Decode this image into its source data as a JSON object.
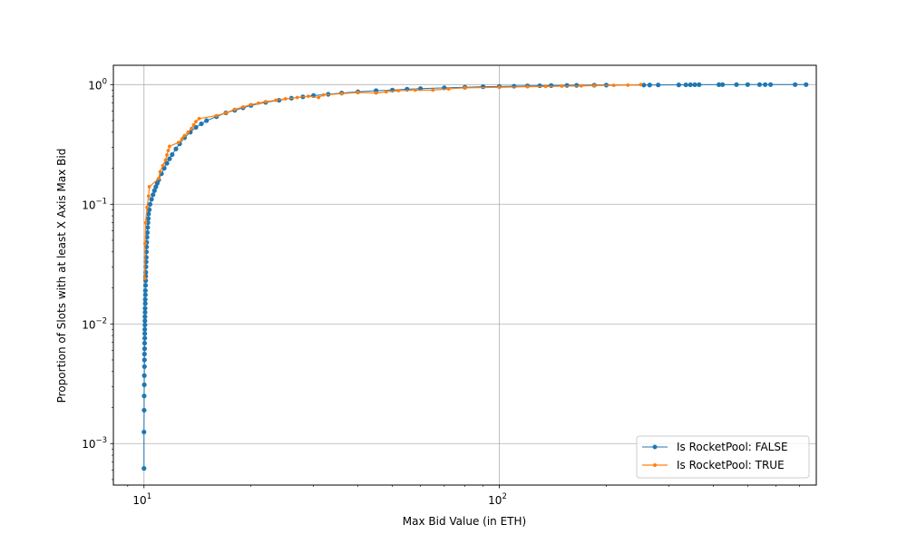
{
  "chart_data": {
    "type": "line",
    "xlabel": "Max Bid Value (in ETH)",
    "ylabel": "Proportion of Slots with at least X Axis Max Bid",
    "xscale": "log",
    "yscale": "log",
    "xlim": [
      8.2,
      780
    ],
    "ylim": [
      0.00045,
      1.45
    ],
    "xticks": [
      {
        "value": 10,
        "base": "10",
        "exp": "1"
      },
      {
        "value": 100,
        "base": "10",
        "exp": "2"
      }
    ],
    "yticks": [
      {
        "value": 0.001,
        "base": "10",
        "exp": "−3"
      },
      {
        "value": 0.01,
        "base": "10",
        "exp": "−2"
      },
      {
        "value": 0.1,
        "base": "10",
        "exp": "−1"
      },
      {
        "value": 1,
        "base": "10",
        "exp": "0"
      }
    ],
    "grid": true,
    "legend_position": "lower-right",
    "series": [
      {
        "name": "Is RocketPool: FALSE",
        "color": "#1f77b4",
        "marker": "circle",
        "points": [
          [
            10.0,
            0.00062
          ],
          [
            10.0,
            0.00125
          ],
          [
            10.01,
            0.0019
          ],
          [
            10.01,
            0.0025
          ],
          [
            10.02,
            0.0031
          ],
          [
            10.02,
            0.0037
          ],
          [
            10.03,
            0.0044
          ],
          [
            10.03,
            0.005
          ],
          [
            10.03,
            0.0056
          ],
          [
            10.04,
            0.0062
          ],
          [
            10.04,
            0.0069
          ],
          [
            10.05,
            0.0076
          ],
          [
            10.05,
            0.0083
          ],
          [
            10.05,
            0.009
          ],
          [
            10.06,
            0.0098
          ],
          [
            10.06,
            0.0106
          ],
          [
            10.06,
            0.0115
          ],
          [
            10.07,
            0.0125
          ],
          [
            10.07,
            0.0135
          ],
          [
            10.08,
            0.0148
          ],
          [
            10.08,
            0.016
          ],
          [
            10.09,
            0.0175
          ],
          [
            10.09,
            0.019
          ],
          [
            10.1,
            0.021
          ],
          [
            10.11,
            0.023
          ],
          [
            10.11,
            0.025
          ],
          [
            10.12,
            0.027
          ],
          [
            10.13,
            0.03
          ],
          [
            10.14,
            0.033
          ],
          [
            10.15,
            0.036
          ],
          [
            10.16,
            0.04
          ],
          [
            10.17,
            0.044
          ],
          [
            10.18,
            0.048
          ],
          [
            10.2,
            0.053
          ],
          [
            10.22,
            0.058
          ],
          [
            10.24,
            0.064
          ],
          [
            10.26,
            0.07
          ],
          [
            10.28,
            0.076
          ],
          [
            10.3,
            0.083
          ],
          [
            10.35,
            0.09
          ],
          [
            10.4,
            0.1
          ],
          [
            10.5,
            0.11
          ],
          [
            10.6,
            0.12
          ],
          [
            10.7,
            0.13
          ],
          [
            10.8,
            0.14
          ],
          [
            10.9,
            0.15
          ],
          [
            11.0,
            0.16
          ],
          [
            11.2,
            0.18
          ],
          [
            11.4,
            0.2
          ],
          [
            11.6,
            0.22
          ],
          [
            11.8,
            0.24
          ],
          [
            12.0,
            0.26
          ],
          [
            12.3,
            0.29
          ],
          [
            12.6,
            0.32
          ],
          [
            13.0,
            0.36
          ],
          [
            13.5,
            0.4
          ],
          [
            14.0,
            0.44
          ],
          [
            14.5,
            0.47
          ],
          [
            15.0,
            0.5
          ],
          [
            16.0,
            0.54
          ],
          [
            17.0,
            0.58
          ],
          [
            18.0,
            0.61
          ],
          [
            19.0,
            0.64
          ],
          [
            20.0,
            0.67
          ],
          [
            22.0,
            0.71
          ],
          [
            24.0,
            0.74
          ],
          [
            26.0,
            0.77
          ],
          [
            28.0,
            0.79
          ],
          [
            30.0,
            0.81
          ],
          [
            33.0,
            0.83
          ],
          [
            36.0,
            0.85
          ],
          [
            40.0,
            0.87
          ],
          [
            45.0,
            0.89
          ],
          [
            50.0,
            0.9
          ],
          [
            55.0,
            0.915
          ],
          [
            60.0,
            0.925
          ],
          [
            70.0,
            0.94
          ],
          [
            80.0,
            0.95
          ],
          [
            90.0,
            0.96
          ],
          [
            100.0,
            0.965
          ],
          [
            110.0,
            0.97
          ],
          [
            120.0,
            0.975
          ],
          [
            130.0,
            0.978
          ],
          [
            140.0,
            0.981
          ],
          [
            155.0,
            0.984
          ],
          [
            165.0,
            0.986
          ],
          [
            185.0,
            0.988
          ],
          [
            200.0,
            0.99
          ],
          [
            255.0,
            0.991
          ],
          [
            265.0,
            0.992
          ],
          [
            280.0,
            0.993
          ],
          [
            320.0,
            0.994
          ],
          [
            335.0,
            0.995
          ],
          [
            345.0,
            0.996
          ],
          [
            355.0,
            0.997
          ],
          [
            365.0,
            0.998
          ],
          [
            415.0,
            0.999
          ],
          [
            425.0,
            0.9993
          ],
          [
            465.0,
            0.9995
          ],
          [
            500.0,
            0.9997
          ],
          [
            540.0,
            0.9998
          ],
          [
            560.0,
            0.9999
          ],
          [
            580.0,
            0.99995
          ],
          [
            680.0,
            0.99998
          ],
          [
            730.0,
            1.0
          ]
        ]
      },
      {
        "name": "Is RocketPool: TRUE",
        "color": "#ff7f0e",
        "marker": "circle",
        "points": [
          [
            10.05,
            0.024
          ],
          [
            10.07,
            0.047
          ],
          [
            10.1,
            0.07
          ],
          [
            10.2,
            0.094
          ],
          [
            10.3,
            0.117
          ],
          [
            10.35,
            0.14
          ],
          [
            11.0,
            0.164
          ],
          [
            11.1,
            0.187
          ],
          [
            11.3,
            0.211
          ],
          [
            11.5,
            0.234
          ],
          [
            11.6,
            0.258
          ],
          [
            11.7,
            0.281
          ],
          [
            11.8,
            0.305
          ],
          [
            12.5,
            0.328
          ],
          [
            12.8,
            0.352
          ],
          [
            13.0,
            0.375
          ],
          [
            13.3,
            0.4
          ],
          [
            13.6,
            0.43
          ],
          [
            13.8,
            0.46
          ],
          [
            14.0,
            0.49
          ],
          [
            14.3,
            0.52
          ],
          [
            16.0,
            0.55
          ],
          [
            17.0,
            0.58
          ],
          [
            18.0,
            0.62
          ],
          [
            19.0,
            0.65
          ],
          [
            20.0,
            0.68
          ],
          [
            21.0,
            0.7
          ],
          [
            22.0,
            0.72
          ],
          [
            23.5,
            0.74
          ],
          [
            25.0,
            0.76
          ],
          [
            27.0,
            0.78
          ],
          [
            29.0,
            0.8
          ],
          [
            31.0,
            0.78
          ],
          [
            32.0,
            0.82
          ],
          [
            36.0,
            0.84
          ],
          [
            40.0,
            0.86
          ],
          [
            45.0,
            0.85
          ],
          [
            48.0,
            0.87
          ],
          [
            52.0,
            0.89
          ],
          [
            58.0,
            0.9
          ],
          [
            65.0,
            0.9
          ],
          [
            72.0,
            0.92
          ],
          [
            80.0,
            0.94
          ],
          [
            100.0,
            0.95
          ],
          [
            120.0,
            0.96
          ],
          [
            135.0,
            0.965
          ],
          [
            150.0,
            0.97
          ],
          [
            170.0,
            0.975
          ],
          [
            185.0,
            0.98
          ],
          [
            210.0,
            0.985
          ],
          [
            230.0,
            0.99
          ],
          [
            250.0,
            1.0
          ]
        ]
      }
    ]
  }
}
